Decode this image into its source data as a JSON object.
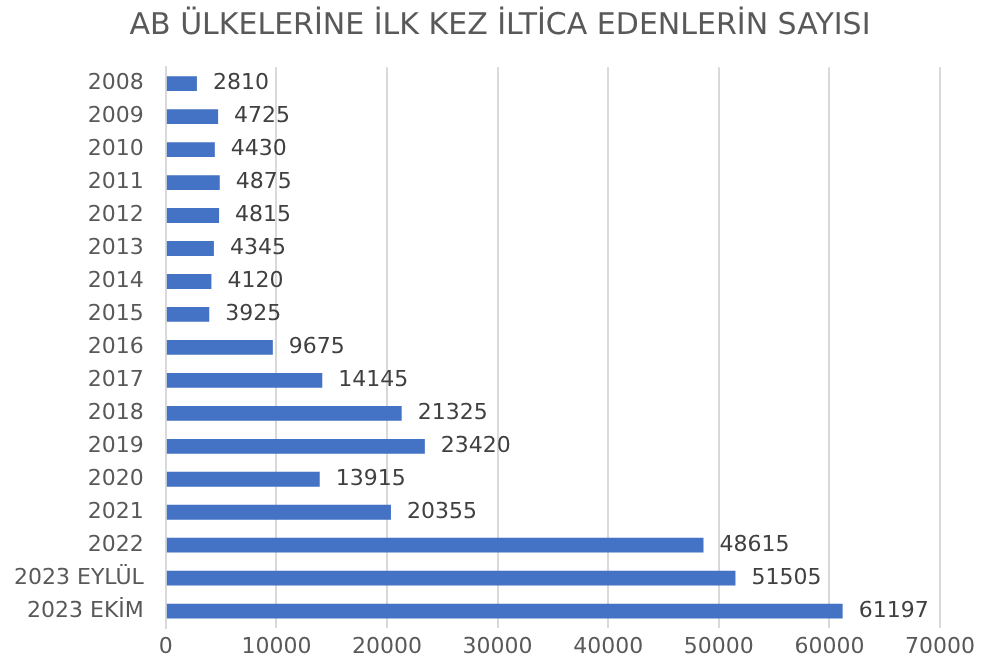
{
  "chart_data": {
    "type": "bar",
    "orientation": "horizontal",
    "title": "AB ÜLKELERİNE İLK KEZ İLTİCA EDENLERİN SAYISI",
    "categories": [
      "2008",
      "2009",
      "2010",
      "2011",
      "2012",
      "2013",
      "2014",
      "2015",
      "2016",
      "2017",
      "2018",
      "2019",
      "2020",
      "2021",
      "2022",
      "2023 EYLÜL",
      "2023 EKİM"
    ],
    "values": [
      2810,
      4725,
      4430,
      4875,
      4815,
      4345,
      4120,
      3925,
      9675,
      14145,
      21325,
      23420,
      13915,
      20355,
      48615,
      51505,
      61197
    ],
    "color": "#4472c4",
    "xlim": [
      0,
      70000
    ],
    "xticks": [
      0,
      10000,
      20000,
      30000,
      40000,
      50000,
      60000,
      70000
    ],
    "grid": "x",
    "data_labels": true
  }
}
